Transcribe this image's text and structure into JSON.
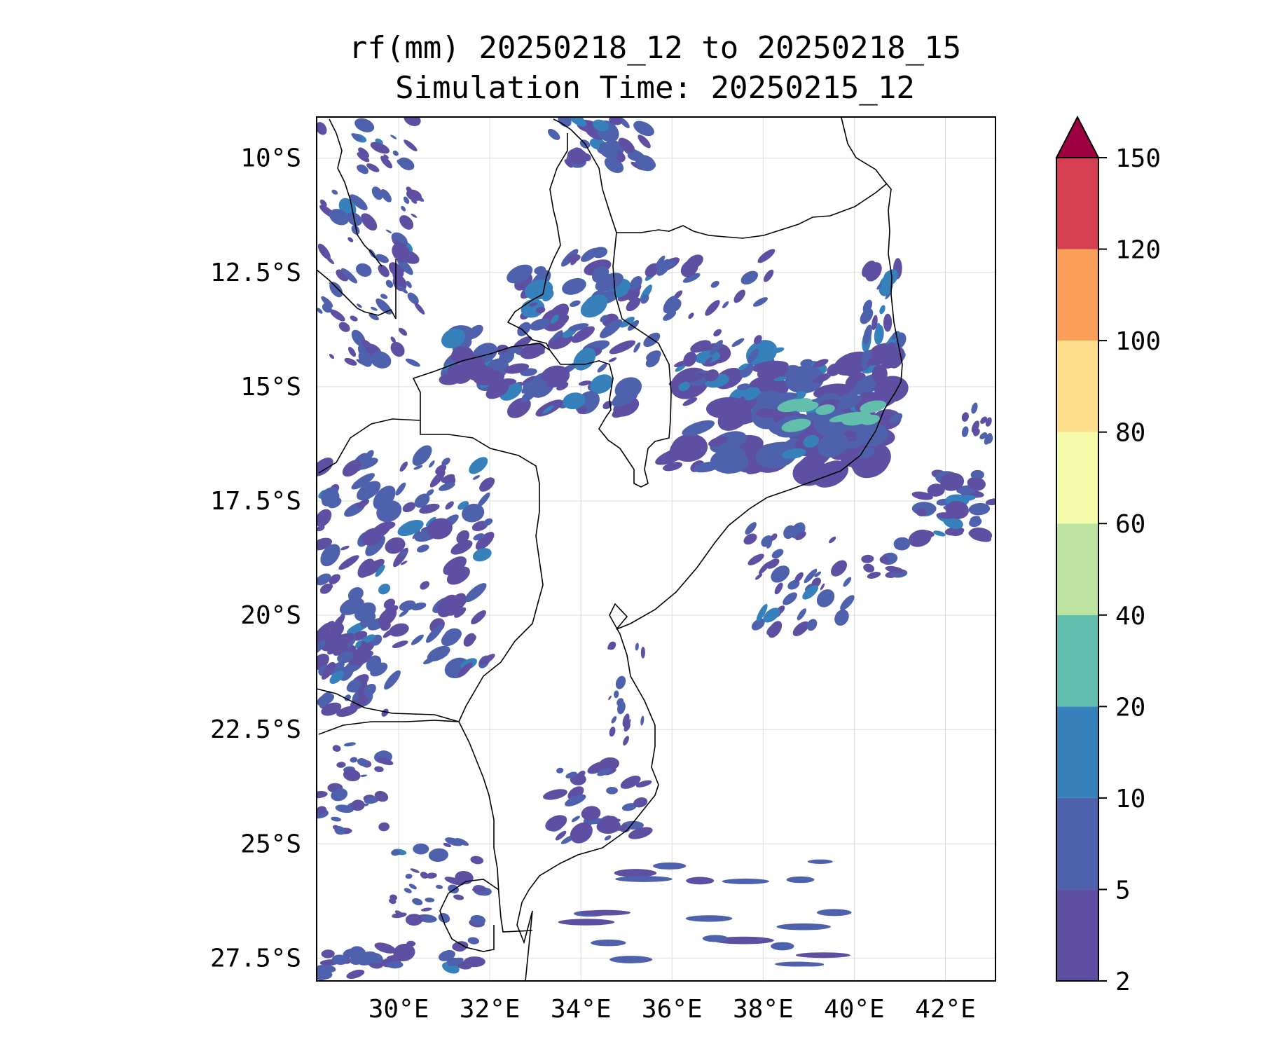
{
  "title": {
    "line1": "rf(mm) 20250218_12 to 20250218_15",
    "line2": "Simulation Time: 20250215_12"
  },
  "map": {
    "lon_range": [
      28.2,
      43.1
    ],
    "lat_range": [
      -28.0,
      -9.1
    ],
    "lon_ticks": [
      {
        "value": 30,
        "label": "30°E"
      },
      {
        "value": 32,
        "label": "32°E"
      },
      {
        "value": 34,
        "label": "34°E"
      },
      {
        "value": 36,
        "label": "36°E"
      },
      {
        "value": 38,
        "label": "38°E"
      },
      {
        "value": 40,
        "label": "40°E"
      },
      {
        "value": 42,
        "label": "42°E"
      }
    ],
    "lat_ticks": [
      {
        "value": -10,
        "label": "10°S"
      },
      {
        "value": -12.5,
        "label": "12.5°S"
      },
      {
        "value": -15,
        "label": "15°S"
      },
      {
        "value": -17.5,
        "label": "17.5°S"
      },
      {
        "value": -20,
        "label": "20°S"
      },
      {
        "value": -22.5,
        "label": "22.5°S"
      },
      {
        "value": -25,
        "label": "25°S"
      },
      {
        "value": -27.5,
        "label": "27.5°S"
      }
    ],
    "gridlines": true
  },
  "colorbar": {
    "levels": [
      "2",
      "5",
      "10",
      "20",
      "40",
      "60",
      "80",
      "100",
      "120",
      "150"
    ],
    "colors": [
      "#5e4fa2",
      "#4e61ad",
      "#3680bb",
      "#62bfad",
      "#bde3a1",
      "#f4fba9",
      "#fddf8b",
      "#fb9e59",
      "#d63f4f"
    ],
    "extend_color": "#9e0142",
    "extend": "max"
  },
  "rain_colors": {
    "c1": "#5e4fa2",
    "c2": "#4e61ad",
    "c3": "#3680bb",
    "c4": "#62bfad"
  }
}
